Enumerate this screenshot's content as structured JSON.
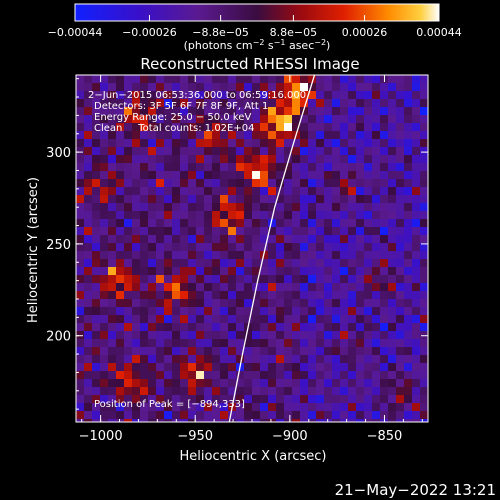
{
  "chart_data": {
    "type": "heatmap",
    "title": "Reconstructed RHESSI Image",
    "xlabel": "Heliocentric X (arcsec)",
    "ylabel": "Heliocentric Y (arcsec)",
    "xlim": [
      -1013,
      -827
    ],
    "ylim": [
      153,
      342
    ],
    "x_ticks": [
      {
        "value": -1000,
        "label": "−1000"
      },
      {
        "value": -950,
        "label": "−950"
      },
      {
        "value": -900,
        "label": "−900"
      },
      {
        "value": -850,
        "label": "−850"
      }
    ],
    "y_ticks": [
      {
        "value": 200,
        "label": "200"
      },
      {
        "value": 250,
        "label": "250"
      },
      {
        "value": 300,
        "label": "300"
      }
    ],
    "colorbar": {
      "colormap": "hot-on-blue",
      "range": [
        -0.00044,
        0.00044
      ],
      "unit_prefix": "(photons cm",
      "unit_middle": " s",
      "unit_suffix": " asec",
      "unit_close": ")",
      "sup1": "−2",
      "sup2": "−1",
      "sup3": "−2",
      "ticks": [
        {
          "value": -0.00044,
          "label": "−0.00044"
        },
        {
          "value": -0.00026,
          "label": "−0.00026"
        },
        {
          "value": -8.8e-05,
          "label": "−8.8e−05"
        },
        {
          "value": 8.8e-05,
          "label": "8.8e−05"
        },
        {
          "value": 0.00026,
          "label": "0.00026"
        },
        {
          "value": 0.00044,
          "label": "0.00044"
        }
      ]
    },
    "annotations": [
      "2−Jun−2015 06:53:36.000 to 06:59:16.000",
      "Detectors: 3F 5F 6F 7F 8F 9F, Att 1",
      "Energy Range: 25.0 − 50.0 keV",
      "Clean     Total counts: 1.02E+04"
    ],
    "peak_label": "Position of Peak = [−894,333]",
    "limb_curve": {
      "name": "solar limb",
      "color": "#ffffff",
      "points": [
        [
          -932,
          153
        ],
        [
          -925,
          190
        ],
        [
          -917,
          230
        ],
        [
          -908,
          270
        ],
        [
          -898,
          305
        ],
        [
          -887,
          342
        ]
      ]
    },
    "bright_sources": [
      {
        "x": -905,
        "y": 315,
        "peak": 1.0
      },
      {
        "x": -895,
        "y": 333,
        "peak": 1.0
      },
      {
        "x": -918,
        "y": 290,
        "peak": 0.85
      },
      {
        "x": -932,
        "y": 265,
        "peak": 0.7
      },
      {
        "x": -990,
        "y": 230,
        "peak": 0.65
      },
      {
        "x": -960,
        "y": 225,
        "peak": 0.6
      },
      {
        "x": -980,
        "y": 320,
        "peak": 0.55
      },
      {
        "x": -985,
        "y": 175,
        "peak": 0.55
      },
      {
        "x": -950,
        "y": 180,
        "peak": 0.6
      },
      {
        "x": -940,
        "y": 310,
        "peak": 0.5
      },
      {
        "x": -1000,
        "y": 280,
        "peak": 0.45
      },
      {
        "x": -872,
        "y": 282,
        "peak": 0.4
      },
      {
        "x": -852,
        "y": 230,
        "peak": 0.35
      },
      {
        "x": -840,
        "y": 168,
        "peak": 0.4
      },
      {
        "x": -870,
        "y": 195,
        "peak": 0.3
      }
    ]
  },
  "footer": {
    "timestamp": "21−May−2022 13:21"
  }
}
